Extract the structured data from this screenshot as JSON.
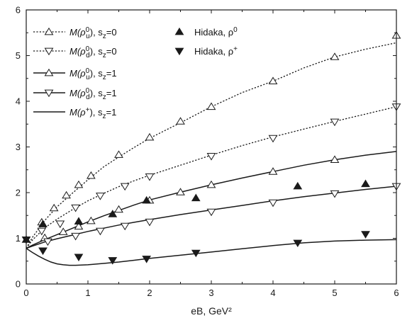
{
  "chart_data": {
    "type": "line",
    "xlabel": "eB, GeV²",
    "ylabel": "",
    "xlim": [
      0,
      6
    ],
    "ylim": [
      0,
      6
    ],
    "xticks": [
      "0",
      "1",
      "2",
      "3",
      "4",
      "5",
      "6"
    ],
    "yticks": [
      "0",
      "1",
      "2",
      "3",
      "4",
      "5",
      "6"
    ],
    "legend_position": "top-left",
    "series": [
      {
        "name_main": "M(ρ",
        "name_sup": "0",
        "name_sub": "u",
        "name_tail": "), s",
        "name_tail_sub": "z",
        "name_end": "=0",
        "line_style": "dotted",
        "marker": "triangle-up-open",
        "x": [
          0,
          0.1,
          0.3,
          0.5,
          0.75,
          1.0,
          1.25,
          1.5,
          1.75,
          2.0,
          2.5,
          3.0,
          3.5,
          4.0,
          4.5,
          5.0,
          5.5,
          6.0
        ],
        "y": [
          0.78,
          1.02,
          1.39,
          1.69,
          1.99,
          2.28,
          2.56,
          2.78,
          2.99,
          3.19,
          3.53,
          3.88,
          4.19,
          4.44,
          4.73,
          4.97,
          5.14,
          5.28
        ],
        "markers_x": [
          0.25,
          0.45,
          0.65,
          0.85,
          1.05,
          1.5,
          2.0,
          2.5,
          3.0,
          4.0,
          5.0,
          6.0
        ],
        "markers_y": [
          1.35,
          1.66,
          1.94,
          2.17,
          2.37,
          2.83,
          3.21,
          3.56,
          3.88,
          4.44,
          4.97,
          5.44
        ]
      },
      {
        "name_main": "M(ρ",
        "name_sup": "0",
        "name_sub": "d",
        "name_tail": "), s",
        "name_tail_sub": "z",
        "name_end": "=0",
        "line_style": "dotted",
        "marker": "triangle-down-open",
        "x": [
          0,
          0.1,
          0.3,
          0.5,
          0.75,
          1.0,
          1.25,
          1.5,
          1.75,
          2.0,
          2.5,
          3.0,
          3.5,
          4.0,
          4.5,
          5.0,
          5.5,
          6.0
        ],
        "y": [
          0.78,
          0.96,
          1.23,
          1.42,
          1.63,
          1.82,
          1.98,
          2.13,
          2.26,
          2.38,
          2.6,
          2.82,
          3.03,
          3.22,
          3.39,
          3.56,
          3.72,
          3.88
        ],
        "markers_x": [
          0.25,
          0.55,
          0.8,
          1.2,
          1.6,
          2.0,
          3.0,
          4.0,
          5.0,
          6.0
        ],
        "markers_y": [
          1.16,
          1.32,
          1.67,
          1.93,
          2.14,
          2.35,
          2.8,
          3.19,
          3.55,
          3.88
        ]
      },
      {
        "name_main": "M(ρ",
        "name_sup": "0",
        "name_sub": "u",
        "name_tail": "), s",
        "name_tail_sub": "z",
        "name_end": "=1",
        "line_style": "solid",
        "marker": "triangle-up-open",
        "x": [
          0,
          0.1,
          0.3,
          0.5,
          0.75,
          1.0,
          1.25,
          1.5,
          1.75,
          2.0,
          2.5,
          3.0,
          3.5,
          4.0,
          4.5,
          5.0,
          5.5,
          6.0
        ],
        "y": [
          0.78,
          0.85,
          0.97,
          1.08,
          1.22,
          1.36,
          1.49,
          1.61,
          1.73,
          1.84,
          2.01,
          2.17,
          2.32,
          2.46,
          2.6,
          2.72,
          2.82,
          2.9
        ],
        "markers_x": [
          0.3,
          0.6,
          0.85,
          1.05,
          1.5,
          2.0,
          2.5,
          3.0,
          4.0,
          5.0
        ],
        "markers_y": [
          1.01,
          1.14,
          1.26,
          1.38,
          1.63,
          1.83,
          2.01,
          2.17,
          2.46,
          2.72
        ]
      },
      {
        "name_main": "M(ρ",
        "name_sup": "0",
        "name_sub": "d",
        "name_tail": "), s",
        "name_tail_sub": "z",
        "name_end": "=1",
        "line_style": "solid",
        "marker": "triangle-down-open",
        "x": [
          0,
          0.1,
          0.3,
          0.5,
          0.75,
          1.0,
          1.25,
          1.5,
          1.75,
          2.0,
          2.5,
          3.0,
          3.5,
          4.0,
          4.5,
          5.0,
          5.5,
          6.0
        ],
        "y": [
          0.78,
          0.83,
          0.92,
          0.99,
          1.07,
          1.15,
          1.22,
          1.29,
          1.35,
          1.41,
          1.52,
          1.62,
          1.72,
          1.82,
          1.91,
          1.99,
          2.07,
          2.14
        ],
        "markers_x": [
          0.35,
          0.8,
          1.2,
          1.6,
          2.0,
          3.0,
          4.0,
          5.0,
          6.0
        ],
        "markers_y": [
          0.93,
          1.05,
          1.16,
          1.27,
          1.36,
          1.58,
          1.78,
          1.98,
          2.14
        ]
      },
      {
        "name_main": "M(ρ",
        "name_sup": "+",
        "name_sub": "",
        "name_tail": "), s",
        "name_tail_sub": "z",
        "name_end": "=1",
        "line_style": "solid",
        "marker": "none",
        "x": [
          0,
          0.1,
          0.2,
          0.3,
          0.4,
          0.5,
          0.6,
          0.7,
          0.8,
          1.0,
          1.25,
          1.5,
          1.75,
          2.0,
          2.5,
          3.0,
          3.5,
          4.0,
          4.5,
          5.0,
          5.5,
          6.0
        ],
        "y": [
          0.78,
          0.69,
          0.61,
          0.54,
          0.48,
          0.44,
          0.42,
          0.41,
          0.41,
          0.42,
          0.45,
          0.48,
          0.52,
          0.56,
          0.63,
          0.7,
          0.77,
          0.84,
          0.9,
          0.94,
          0.96,
          0.97
        ],
        "markers_x": [],
        "markers_y": []
      },
      {
        "name_main": "Hidaka, ρ",
        "name_sup": "0",
        "name_sub": "",
        "name_tail": "",
        "name_tail_sub": "",
        "name_end": "",
        "line_style": "none",
        "marker": "triangle-up-filled",
        "x": [],
        "y": [],
        "markers_x": [
          0,
          0.27,
          0.85,
          1.4,
          1.95,
          2.75,
          4.4,
          5.5
        ],
        "markers_y": [
          0.97,
          1.31,
          1.37,
          1.53,
          1.83,
          1.88,
          2.14,
          2.19
        ]
      },
      {
        "name_main": "Hidaka, ρ",
        "name_sup": "+",
        "name_sub": "",
        "name_tail": "",
        "name_tail_sub": "",
        "name_end": "",
        "line_style": "none",
        "marker": "triangle-down-filled",
        "x": [],
        "y": [],
        "markers_x": [
          0,
          0.27,
          0.85,
          1.4,
          1.95,
          2.75,
          4.4,
          5.5
        ],
        "markers_y": [
          0.97,
          0.73,
          0.59,
          0.52,
          0.55,
          0.68,
          0.9,
          1.09
        ]
      }
    ]
  },
  "colors": {
    "ink": "#1a1a1a",
    "background": "#ffffff"
  }
}
